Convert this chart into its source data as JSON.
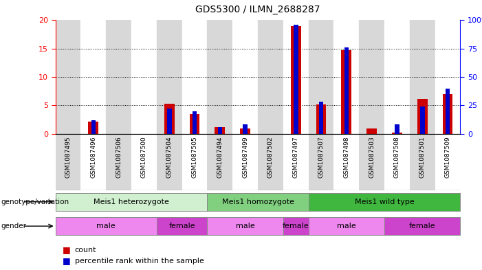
{
  "title": "GDS5300 / ILMN_2688287",
  "samples": [
    "GSM1087495",
    "GSM1087496",
    "GSM1087506",
    "GSM1087500",
    "GSM1087504",
    "GSM1087505",
    "GSM1087494",
    "GSM1087499",
    "GSM1087502",
    "GSM1087497",
    "GSM1087507",
    "GSM1087498",
    "GSM1087503",
    "GSM1087508",
    "GSM1087501",
    "GSM1087509"
  ],
  "count": [
    0.0,
    2.1,
    0.0,
    0.0,
    5.3,
    3.4,
    1.1,
    0.9,
    0.0,
    19.0,
    5.1,
    14.7,
    0.9,
    0.2,
    6.1,
    7.0
  ],
  "percentile": [
    0.0,
    12.0,
    0.0,
    0.0,
    22.0,
    20.0,
    6.0,
    8.0,
    0.0,
    96.0,
    28.0,
    76.0,
    0.0,
    8.0,
    24.0,
    40.0
  ],
  "left_ylim": [
    0,
    20
  ],
  "right_ylim": [
    0,
    100
  ],
  "left_yticks": [
    0,
    5,
    10,
    15,
    20
  ],
  "right_yticks": [
    0,
    25,
    50,
    75,
    100
  ],
  "count_color": "#cc0000",
  "percentile_color": "#0000cc",
  "bg_even": "#d8d8d8",
  "bg_odd": "#ffffff",
  "geno_color_1": "#d0f0d0",
  "geno_color_2": "#80d080",
  "geno_color_3": "#40b840",
  "geno_labels": [
    "Meis1 heterozygote",
    "Meis1 homozygote",
    "Meis1 wild type"
  ],
  "geno_ranges": [
    [
      0,
      6
    ],
    [
      6,
      10
    ],
    [
      10,
      16
    ]
  ],
  "male_ranges": [
    [
      0,
      4
    ],
    [
      6,
      9
    ],
    [
      10,
      13
    ]
  ],
  "female_ranges": [
    [
      4,
      6
    ],
    [
      9,
      10
    ],
    [
      13,
      16
    ]
  ],
  "male_color": "#ee88ee",
  "female_color": "#cc44cc",
  "legend_count": "count",
  "legend_pct": "percentile rank within the sample"
}
